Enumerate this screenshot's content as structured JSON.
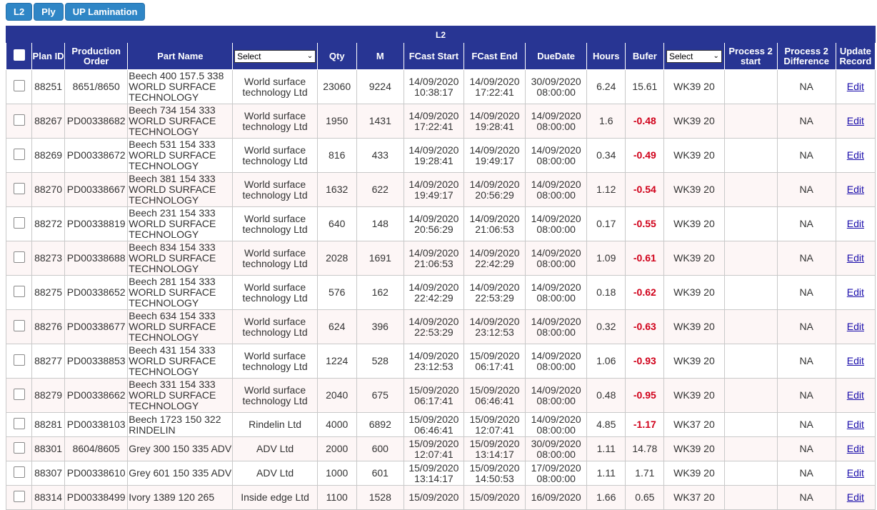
{
  "toolbar": {
    "buttons": [
      "L2",
      "Ply",
      "UP Lamination"
    ]
  },
  "table": {
    "caption": "L2",
    "headers": {
      "plan_id": "Plan ID",
      "production_order": "Production Order",
      "part_name": "Part Name",
      "customer_filter": "Select",
      "qty": "Qty",
      "m": "M",
      "fcast_start": "FCast Start",
      "fcast_end": "FCast End",
      "due_date": "DueDate",
      "hours": "Hours",
      "bufer": "Bufer",
      "week_filter": "Select",
      "process2_start": "Process 2 start",
      "process2_difference": "Process 2 Difference",
      "update_record": "Update Record"
    },
    "rows": [
      {
        "plan_id": "88251",
        "order": "8651/8650",
        "part": "Beech 400 157.5 338 WORLD SURFACE TECHNOLOGY",
        "customer": "World surface technology Ltd",
        "qty": "23060",
        "m": "9224",
        "fcast_start": "14/09/2020 10:38:17",
        "fcast_end": "14/09/2020 17:22:41",
        "due": "30/09/2020 08:00:00",
        "hours": "6.24",
        "bufer": "15.61",
        "week": "WK39 20",
        "p2_start": "",
        "p2_diff": "NA",
        "edit": "Edit"
      },
      {
        "plan_id": "88267",
        "order": "PD00338682",
        "part": "Beech 734 154 333 WORLD SURFACE TECHNOLOGY",
        "customer": "World surface technology Ltd",
        "qty": "1950",
        "m": "1431",
        "fcast_start": "14/09/2020 17:22:41",
        "fcast_end": "14/09/2020 19:28:41",
        "due": "14/09/2020 08:00:00",
        "hours": "1.6",
        "bufer": "-0.48",
        "week": "WK39 20",
        "p2_start": "",
        "p2_diff": "NA",
        "edit": "Edit"
      },
      {
        "plan_id": "88269",
        "order": "PD00338672",
        "part": "Beech 531 154 333 WORLD SURFACE TECHNOLOGY",
        "customer": "World surface technology Ltd",
        "qty": "816",
        "m": "433",
        "fcast_start": "14/09/2020 19:28:41",
        "fcast_end": "14/09/2020 19:49:17",
        "due": "14/09/2020 08:00:00",
        "hours": "0.34",
        "bufer": "-0.49",
        "week": "WK39 20",
        "p2_start": "",
        "p2_diff": "NA",
        "edit": "Edit"
      },
      {
        "plan_id": "88270",
        "order": "PD00338667",
        "part": "Beech 381 154 333 WORLD SURFACE TECHNOLOGY",
        "customer": "World surface technology Ltd",
        "qty": "1632",
        "m": "622",
        "fcast_start": "14/09/2020 19:49:17",
        "fcast_end": "14/09/2020 20:56:29",
        "due": "14/09/2020 08:00:00",
        "hours": "1.12",
        "bufer": "-0.54",
        "week": "WK39 20",
        "p2_start": "",
        "p2_diff": "NA",
        "edit": "Edit"
      },
      {
        "plan_id": "88272",
        "order": "PD00338819",
        "part": "Beech 231 154 333 WORLD SURFACE TECHNOLOGY",
        "customer": "World surface technology Ltd",
        "qty": "640",
        "m": "148",
        "fcast_start": "14/09/2020 20:56:29",
        "fcast_end": "14/09/2020 21:06:53",
        "due": "14/09/2020 08:00:00",
        "hours": "0.17",
        "bufer": "-0.55",
        "week": "WK39 20",
        "p2_start": "",
        "p2_diff": "NA",
        "edit": "Edit"
      },
      {
        "plan_id": "88273",
        "order": "PD00338688",
        "part": "Beech 834 154 333 WORLD SURFACE TECHNOLOGY",
        "customer": "World surface technology Ltd",
        "qty": "2028",
        "m": "1691",
        "fcast_start": "14/09/2020 21:06:53",
        "fcast_end": "14/09/2020 22:42:29",
        "due": "14/09/2020 08:00:00",
        "hours": "1.09",
        "bufer": "-0.61",
        "week": "WK39 20",
        "p2_start": "",
        "p2_diff": "NA",
        "edit": "Edit"
      },
      {
        "plan_id": "88275",
        "order": "PD00338652",
        "part": "Beech 281 154 333 WORLD SURFACE TECHNOLOGY",
        "customer": "World surface technology Ltd",
        "qty": "576",
        "m": "162",
        "fcast_start": "14/09/2020 22:42:29",
        "fcast_end": "14/09/2020 22:53:29",
        "due": "14/09/2020 08:00:00",
        "hours": "0.18",
        "bufer": "-0.62",
        "week": "WK39 20",
        "p2_start": "",
        "p2_diff": "NA",
        "edit": "Edit"
      },
      {
        "plan_id": "88276",
        "order": "PD00338677",
        "part": "Beech 634 154 333 WORLD SURFACE TECHNOLOGY",
        "customer": "World surface technology Ltd",
        "qty": "624",
        "m": "396",
        "fcast_start": "14/09/2020 22:53:29",
        "fcast_end": "14/09/2020 23:12:53",
        "due": "14/09/2020 08:00:00",
        "hours": "0.32",
        "bufer": "-0.63",
        "week": "WK39 20",
        "p2_start": "",
        "p2_diff": "NA",
        "edit": "Edit"
      },
      {
        "plan_id": "88277",
        "order": "PD00338853",
        "part": "Beech 431 154 333 WORLD SURFACE TECHNOLOGY",
        "customer": "World surface technology Ltd",
        "qty": "1224",
        "m": "528",
        "fcast_start": "14/09/2020 23:12:53",
        "fcast_end": "15/09/2020 06:17:41",
        "due": "14/09/2020 08:00:00",
        "hours": "1.06",
        "bufer": "-0.93",
        "week": "WK39 20",
        "p2_start": "",
        "p2_diff": "NA",
        "edit": "Edit"
      },
      {
        "plan_id": "88279",
        "order": "PD00338662",
        "part": "Beech 331 154 333 WORLD SURFACE TECHNOLOGY",
        "customer": "World surface technology Ltd",
        "qty": "2040",
        "m": "675",
        "fcast_start": "15/09/2020 06:17:41",
        "fcast_end": "15/09/2020 06:46:41",
        "due": "14/09/2020 08:00:00",
        "hours": "0.48",
        "bufer": "-0.95",
        "week": "WK39 20",
        "p2_start": "",
        "p2_diff": "NA",
        "edit": "Edit"
      },
      {
        "plan_id": "88281",
        "order": "PD00338103",
        "part": "Beech 1723 150 322 RINDELIN",
        "customer": "Rindelin Ltd",
        "qty": "4000",
        "m": "6892",
        "fcast_start": "15/09/2020 06:46:41",
        "fcast_end": "15/09/2020 12:07:41",
        "due": "14/09/2020 08:00:00",
        "hours": "4.85",
        "bufer": "-1.17",
        "week": "WK37 20",
        "p2_start": "",
        "p2_diff": "NA",
        "edit": "Edit"
      },
      {
        "plan_id": "88301",
        "order": "8604/8605",
        "part": "Grey 300 150 335 ADV",
        "customer": "ADV Ltd",
        "qty": "2000",
        "m": "600",
        "fcast_start": "15/09/2020 12:07:41",
        "fcast_end": "15/09/2020 13:14:17",
        "due": "30/09/2020 08:00:00",
        "hours": "1.11",
        "bufer": "14.78",
        "week": "WK39 20",
        "p2_start": "",
        "p2_diff": "NA",
        "edit": "Edit"
      },
      {
        "plan_id": "88307",
        "order": "PD00338610",
        "part": "Grey 601 150 335 ADV",
        "customer": "ADV Ltd",
        "qty": "1000",
        "m": "601",
        "fcast_start": "15/09/2020 13:14:17",
        "fcast_end": "15/09/2020 14:50:53",
        "due": "17/09/2020 08:00:00",
        "hours": "1.11",
        "bufer": "1.71",
        "week": "WK39 20",
        "p2_start": "",
        "p2_diff": "NA",
        "edit": "Edit"
      },
      {
        "plan_id": "88314",
        "order": "PD00338499",
        "part": "Ivory 1389 120 265",
        "customer": "Inside edge Ltd",
        "qty": "1100",
        "m": "1528",
        "fcast_start": "15/09/2020",
        "fcast_end": "15/09/2020",
        "due": "16/09/2020",
        "hours": "1.66",
        "bufer": "0.65",
        "week": "WK37 20",
        "p2_start": "",
        "p2_diff": "NA",
        "edit": "Edit"
      }
    ]
  }
}
